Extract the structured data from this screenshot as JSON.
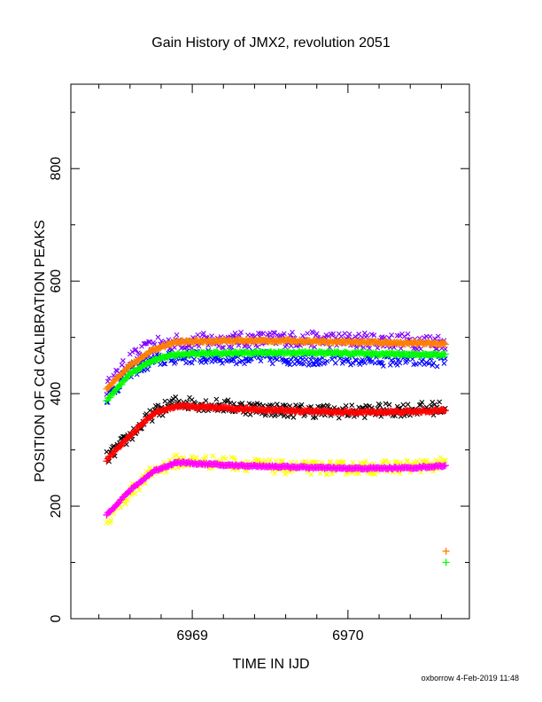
{
  "chart_data": {
    "type": "scatter",
    "title": "Gain History of JMX2, revolution 2051",
    "xlabel": "TIME IN IJD",
    "ylabel": "POSITION OF Cd CALIBRATION PEAKS",
    "xlim": [
      6968.22,
      6970.78
    ],
    "ylim": [
      0,
      950
    ],
    "x_ticks": [
      6969,
      6970
    ],
    "x_tick_labels": [
      "6969",
      "6970"
    ],
    "x_minor_step": 0.2,
    "y_ticks": [
      0,
      200,
      400,
      600,
      800
    ],
    "y_tick_labels": [
      "0",
      "200",
      "400",
      "600",
      "800"
    ],
    "y_minor_step": 100,
    "grid": false,
    "legend": "none",
    "footer": "oxborrow  4-Feb-2019 11:48",
    "series": [
      {
        "color": "#ff8000",
        "marker": "plus",
        "fit": true,
        "scatter_amp": 4,
        "x": [
          6968.45,
          6968.6,
          6968.75,
          6968.9,
          6969.2,
          6969.6,
          6970.0,
          6970.4,
          6970.63
        ],
        "values": [
          408,
          450,
          478,
          492,
          494,
          494,
          492,
          490,
          489
        ]
      },
      {
        "color": "#8000ff",
        "marker": "cross",
        "fit": false,
        "scatter_amp": 14,
        "x": [
          6968.45,
          6968.6,
          6968.75,
          6968.9,
          6969.2,
          6969.6,
          6970.0,
          6970.4,
          6970.63
        ],
        "values": [
          410,
          460,
          485,
          492,
          495,
          497,
          495,
          493,
          492
        ]
      },
      {
        "color": "#00ff00",
        "marker": "plus",
        "fit": true,
        "scatter_amp": 4,
        "x": [
          6968.45,
          6968.6,
          6968.75,
          6968.9,
          6969.2,
          6969.6,
          6970.0,
          6970.4,
          6970.63
        ],
        "values": [
          388,
          435,
          460,
          470,
          472,
          473,
          472,
          470,
          469
        ]
      },
      {
        "color": "#0000ff",
        "marker": "cross",
        "fit": false,
        "scatter_amp": 12,
        "x": [
          6968.45,
          6968.6,
          6968.75,
          6968.9,
          6969.2,
          6969.6,
          6970.0,
          6970.4,
          6970.63
        ],
        "values": [
          392,
          440,
          458,
          465,
          465,
          463,
          462,
          460,
          460
        ]
      },
      {
        "color": "#000000",
        "marker": "cross",
        "fit": false,
        "scatter_amp": 12,
        "x": [
          6968.45,
          6968.6,
          6968.75,
          6968.9,
          6969.2,
          6969.6,
          6970.0,
          6970.4,
          6970.63
        ],
        "values": [
          285,
          325,
          365,
          385,
          378,
          370,
          368,
          372,
          375
        ]
      },
      {
        "color": "#ff0000",
        "marker": "plus",
        "fit": true,
        "scatter_amp": 4,
        "x": [
          6968.45,
          6968.6,
          6968.75,
          6968.9,
          6969.2,
          6969.6,
          6970.0,
          6970.4,
          6970.63
        ],
        "values": [
          282,
          325,
          365,
          378,
          374,
          370,
          367,
          368,
          370
        ]
      },
      {
        "color": "#ffff00",
        "marker": "cross",
        "fit": false,
        "scatter_amp": 12,
        "x": [
          6968.45,
          6968.6,
          6968.75,
          6968.9,
          6969.2,
          6969.6,
          6970.0,
          6970.4,
          6970.63
        ],
        "values": [
          172,
          225,
          262,
          280,
          278,
          268,
          268,
          270,
          275
        ]
      },
      {
        "color": "#ff00ff",
        "marker": "plus",
        "fit": true,
        "scatter_amp": 3,
        "x": [
          6968.45,
          6968.6,
          6968.75,
          6968.9,
          6969.2,
          6969.6,
          6970.0,
          6970.4,
          6970.63
        ],
        "values": [
          185,
          228,
          262,
          278,
          273,
          270,
          267,
          268,
          272
        ]
      }
    ],
    "extra_points": [
      {
        "x": 6970.63,
        "y": 120,
        "color": "#ff8000",
        "marker": "plus"
      },
      {
        "x": 6970.63,
        "y": 100,
        "color": "#00ff00",
        "marker": "plus"
      }
    ]
  }
}
